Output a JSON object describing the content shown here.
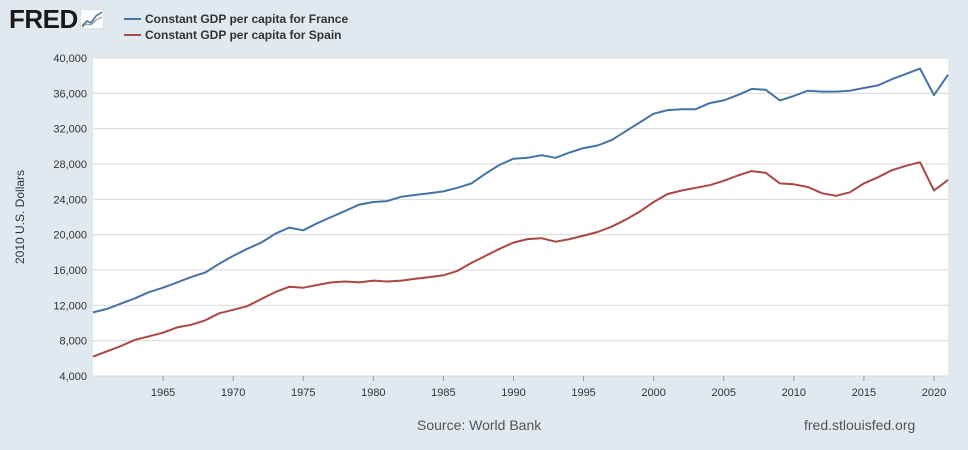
{
  "header": {
    "logo_text": "FRED",
    "logo_icon": "line-graph-icon"
  },
  "colors": {
    "france": "#4572a7",
    "spain": "#aa4643",
    "plot_bg": "#ffffff",
    "page_bg": "#e1e9f0",
    "grid": "#d8d8d8"
  },
  "footer": {
    "source": "Source: World Bank",
    "url": "fred.stlouisfed.org"
  },
  "chart_data": {
    "type": "line",
    "title": "",
    "xlabel": "",
    "ylabel": "2010 U.S. Dollars",
    "xlim": [
      1960,
      2021
    ],
    "ylim": [
      4000,
      40000
    ],
    "grid": true,
    "legend_position": "top-left",
    "x_ticks": [
      1965,
      1970,
      1975,
      1980,
      1985,
      1990,
      1995,
      2000,
      2005,
      2010,
      2015,
      2020
    ],
    "x_tick_labels": [
      "1965",
      "1970",
      "1975",
      "1980",
      "1985",
      "1990",
      "1995",
      "2000",
      "2005",
      "2010",
      "2015",
      "2020"
    ],
    "y_ticks": [
      4000,
      8000,
      12000,
      16000,
      20000,
      24000,
      28000,
      32000,
      36000,
      40000
    ],
    "y_tick_labels": [
      "4,000",
      "8,000",
      "12,000",
      "16,000",
      "20,000",
      "24,000",
      "28,000",
      "32,000",
      "36,000",
      "40,000"
    ],
    "x": [
      1960,
      1961,
      1962,
      1963,
      1964,
      1965,
      1966,
      1967,
      1968,
      1969,
      1970,
      1971,
      1972,
      1973,
      1974,
      1975,
      1976,
      1977,
      1978,
      1979,
      1980,
      1981,
      1982,
      1983,
      1984,
      1985,
      1986,
      1987,
      1988,
      1989,
      1990,
      1991,
      1992,
      1993,
      1994,
      1995,
      1996,
      1997,
      1998,
      1999,
      2000,
      2001,
      2002,
      2003,
      2004,
      2005,
      2006,
      2007,
      2008,
      2009,
      2010,
      2011,
      2012,
      2013,
      2014,
      2015,
      2016,
      2017,
      2018,
      2019,
      2020,
      2021
    ],
    "series": [
      {
        "name": "Constant GDP per capita for France",
        "color": "#4572a7",
        "values": [
          11200,
          11600,
          12200,
          12800,
          13500,
          14000,
          14600,
          15200,
          15700,
          16700,
          17600,
          18400,
          19100,
          20100,
          20800,
          20500,
          21300,
          22000,
          22700,
          23400,
          23700,
          23800,
          24300,
          24500,
          24700,
          24900,
          25300,
          25800,
          26900,
          27900,
          28600,
          28700,
          29000,
          28700,
          29300,
          29800,
          30100,
          30700,
          31700,
          32700,
          33700,
          34100,
          34200,
          34200,
          34900,
          35200,
          35800,
          36500,
          36400,
          35200,
          35700,
          36300,
          36200,
          36200,
          36300,
          36600,
          36900,
          37600,
          38200,
          38800,
          35800,
          38100
        ]
      },
      {
        "name": "Constant GDP per capita for Spain",
        "color": "#aa4643",
        "values": [
          6200,
          6800,
          7400,
          8100,
          8500,
          8900,
          9500,
          9800,
          10300,
          11100,
          11500,
          11900,
          12700,
          13500,
          14100,
          14000,
          14300,
          14600,
          14700,
          14600,
          14800,
          14700,
          14800,
          15000,
          15200,
          15400,
          15900,
          16800,
          17600,
          18400,
          19100,
          19500,
          19600,
          19200,
          19500,
          19900,
          20300,
          20900,
          21700,
          22600,
          23700,
          24600,
          25000,
          25300,
          25600,
          26100,
          26700,
          27200,
          27000,
          25800,
          25700,
          25400,
          24700,
          24400,
          24800,
          25800,
          26500,
          27300,
          27800,
          28200,
          25000,
          26200
        ]
      }
    ]
  }
}
